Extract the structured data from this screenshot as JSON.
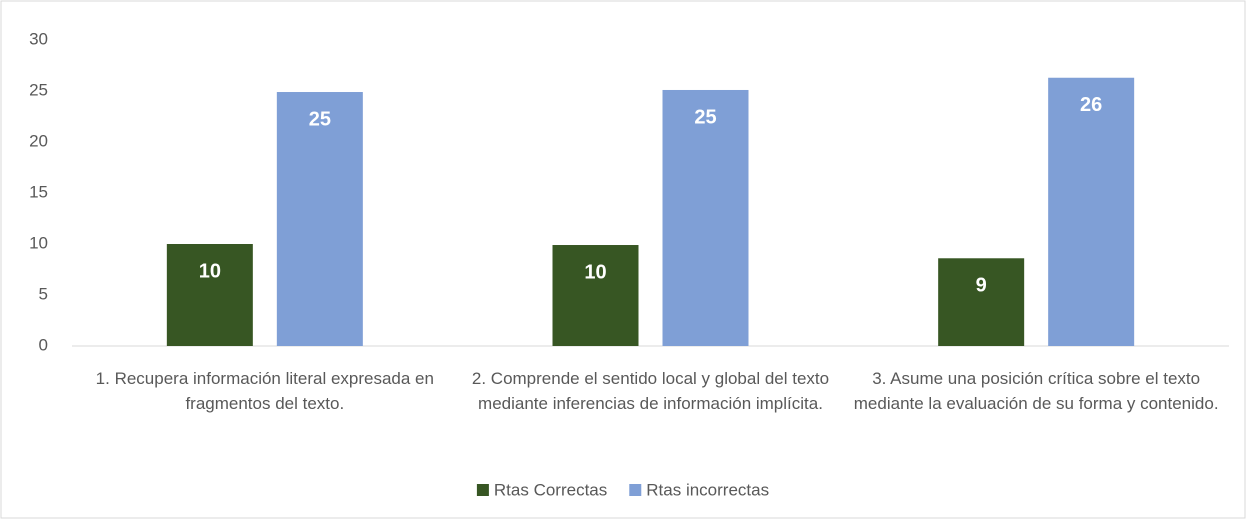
{
  "chart_data": {
    "type": "bar",
    "categories": [
      "1. Recupera información literal expresada en fragmentos del texto.",
      "2. Comprende el sentido local y global del texto mediante inferencias de información implícita.",
      "3. Asume una posición crítica sobre el texto mediante la evaluación de su forma y contenido."
    ],
    "series": [
      {
        "name": "Rtas Correctas",
        "color": "#375623",
        "values": [
          10,
          9.9,
          8.6
        ],
        "value_labels": [
          "10",
          "10",
          "9"
        ]
      },
      {
        "name": "Rtas incorrectas",
        "color": "#7f9fd6",
        "values": [
          24.9,
          25.1,
          26.3
        ],
        "value_labels": [
          "25",
          "25",
          "26"
        ]
      }
    ],
    "ylim": [
      0,
      30
    ],
    "yticks": [
      0,
      5,
      10,
      15,
      20,
      25,
      30
    ],
    "grid": false,
    "legend": "bottom"
  }
}
